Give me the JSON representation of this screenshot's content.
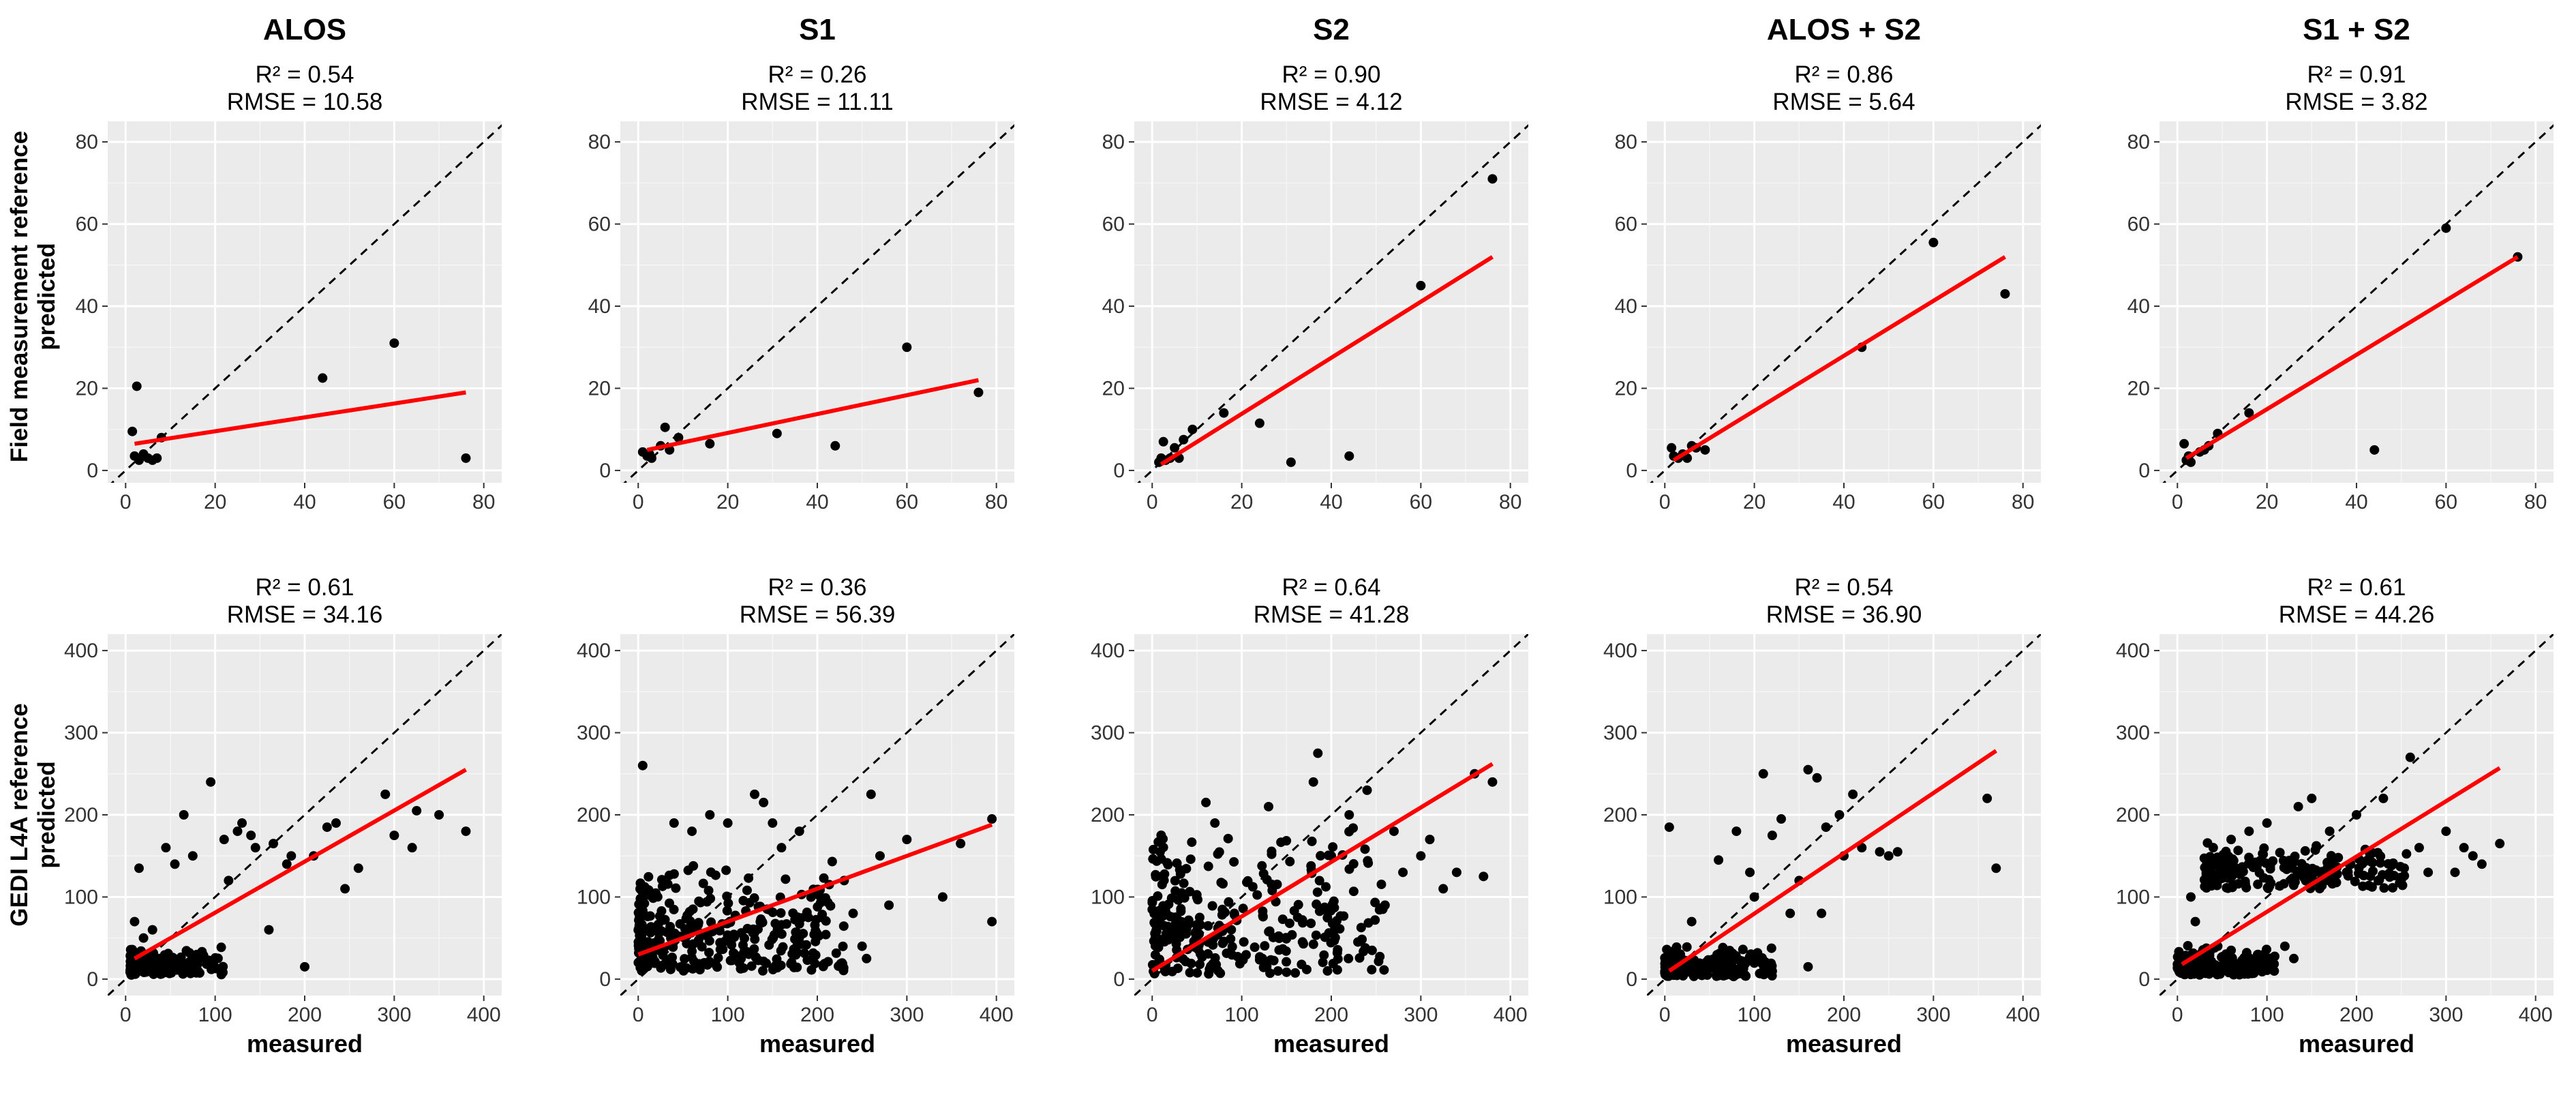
{
  "figure": {
    "columns": [
      "ALOS",
      "S1",
      "S2",
      "ALOS + S2",
      "S1 + S2"
    ],
    "rows": [
      {
        "ylabel_line1": "Field measurement reference",
        "ylabel_line2": "predicted"
      },
      {
        "ylabel_line1": "GEDI L4A reference",
        "ylabel_line2": "predicted"
      }
    ],
    "xlabel": "measured",
    "colors": {
      "panel_bg": "#ebebeb",
      "grid_major": "#ffffff",
      "grid_minor": "#f5f5f5",
      "points": "#000000",
      "fit_line": "#ff0000",
      "identity_line": "#000000"
    }
  },
  "chart_data": [
    {
      "type": "scatter",
      "column": "ALOS",
      "row": "Field measurement reference",
      "stat_r2": "R² = 0.54",
      "stat_rmse": "RMSE = 10.58",
      "xlim": [
        -4,
        84
      ],
      "ylim": [
        -3,
        85
      ],
      "xticks": [
        0,
        20,
        40,
        60,
        80
      ],
      "yticks": [
        0,
        20,
        40,
        60,
        80
      ],
      "points": [
        [
          1.5,
          9.5
        ],
        [
          2.5,
          20.5
        ],
        [
          2,
          3.5
        ],
        [
          3,
          2.5
        ],
        [
          4,
          4
        ],
        [
          5,
          3
        ],
        [
          6,
          2.5
        ],
        [
          7,
          3
        ],
        [
          8,
          8
        ],
        [
          44,
          22.5
        ],
        [
          60,
          31
        ],
        [
          76,
          3
        ]
      ],
      "fit": [
        [
          2,
          6.5
        ],
        [
          76,
          19
        ]
      ]
    },
    {
      "type": "scatter",
      "column": "S1",
      "row": "Field measurement reference",
      "stat_r2": "R² = 0.26",
      "stat_rmse": "RMSE = 11.11",
      "xlim": [
        -4,
        84
      ],
      "ylim": [
        -3,
        85
      ],
      "xticks": [
        0,
        20,
        40,
        60,
        80
      ],
      "yticks": [
        0,
        20,
        40,
        60,
        80
      ],
      "points": [
        [
          1,
          4.5
        ],
        [
          2,
          3.5
        ],
        [
          2.5,
          4
        ],
        [
          3,
          3
        ],
        [
          5,
          6
        ],
        [
          6,
          10.5
        ],
        [
          7,
          5
        ],
        [
          9,
          8
        ],
        [
          16,
          6.5
        ],
        [
          31,
          9
        ],
        [
          44,
          6
        ],
        [
          60,
          30
        ],
        [
          76,
          19
        ]
      ],
      "fit": [
        [
          2,
          5
        ],
        [
          76,
          22
        ]
      ]
    },
    {
      "type": "scatter",
      "column": "S2",
      "row": "Field measurement reference",
      "stat_r2": "R² = 0.90",
      "stat_rmse": "RMSE = 4.12",
      "xlim": [
        -4,
        84
      ],
      "ylim": [
        -3,
        85
      ],
      "xticks": [
        0,
        20,
        40,
        60,
        80
      ],
      "yticks": [
        0,
        20,
        40,
        60,
        80
      ],
      "points": [
        [
          1.5,
          2
        ],
        [
          2,
          3
        ],
        [
          2.5,
          7
        ],
        [
          3,
          2.5
        ],
        [
          4,
          3
        ],
        [
          5,
          5.5
        ],
        [
          6,
          3
        ],
        [
          7,
          7.5
        ],
        [
          9,
          10
        ],
        [
          16,
          14
        ],
        [
          24,
          11.5
        ],
        [
          31,
          2
        ],
        [
          44,
          3.5
        ],
        [
          60,
          45
        ],
        [
          76,
          71
        ]
      ],
      "fit": [
        [
          2,
          1.5
        ],
        [
          76,
          52
        ]
      ]
    },
    {
      "type": "scatter",
      "column": "ALOS + S2",
      "row": "Field measurement reference",
      "stat_r2": "R² = 0.86",
      "stat_rmse": "RMSE = 5.64",
      "xlim": [
        -4,
        84
      ],
      "ylim": [
        -3,
        85
      ],
      "xticks": [
        0,
        20,
        40,
        60,
        80
      ],
      "yticks": [
        0,
        20,
        40,
        60,
        80
      ],
      "points": [
        [
          1.5,
          5.5
        ],
        [
          2,
          3.5
        ],
        [
          3,
          3
        ],
        [
          4,
          4
        ],
        [
          5,
          3
        ],
        [
          6,
          6
        ],
        [
          7,
          5.5
        ],
        [
          9,
          5
        ],
        [
          44,
          30
        ],
        [
          60,
          55.5
        ],
        [
          76,
          43
        ]
      ],
      "fit": [
        [
          2,
          2.5
        ],
        [
          76,
          52
        ]
      ]
    },
    {
      "type": "scatter",
      "column": "S1 + S2",
      "row": "Field measurement reference",
      "stat_r2": "R² = 0.91",
      "stat_rmse": "RMSE = 3.82",
      "xlim": [
        -4,
        84
      ],
      "ylim": [
        -3,
        85
      ],
      "xticks": [
        0,
        20,
        40,
        60,
        80
      ],
      "yticks": [
        0,
        20,
        40,
        60,
        80
      ],
      "points": [
        [
          1.5,
          6.5
        ],
        [
          2,
          2.5
        ],
        [
          2.5,
          3.5
        ],
        [
          3,
          2
        ],
        [
          5,
          4.5
        ],
        [
          6,
          5
        ],
        [
          7,
          6
        ],
        [
          9,
          9
        ],
        [
          16,
          14
        ],
        [
          44,
          5
        ],
        [
          60,
          59
        ],
        [
          76,
          52
        ]
      ],
      "fit": [
        [
          2,
          3
        ],
        [
          76,
          52
        ]
      ]
    },
    {
      "type": "scatter",
      "column": "ALOS",
      "row": "GEDI L4A reference",
      "stat_r2": "R² = 0.61",
      "stat_rmse": "RMSE = 34.16",
      "xlim": [
        -20,
        420
      ],
      "ylim": [
        -20,
        420
      ],
      "xticks": [
        0,
        100,
        200,
        300,
        400
      ],
      "yticks": [
        0,
        100,
        200,
        300,
        400
      ],
      "points": [
        [
          10,
          70
        ],
        [
          15,
          135
        ],
        [
          20,
          50
        ],
        [
          30,
          60
        ],
        [
          45,
          160
        ],
        [
          55,
          140
        ],
        [
          65,
          200
        ],
        [
          75,
          150
        ],
        [
          95,
          240
        ],
        [
          110,
          170
        ],
        [
          115,
          120
        ],
        [
          125,
          180
        ],
        [
          130,
          190
        ],
        [
          140,
          175
        ],
        [
          145,
          160
        ],
        [
          160,
          60
        ],
        [
          165,
          165
        ],
        [
          180,
          140
        ],
        [
          185,
          150
        ],
        [
          200,
          15
        ],
        [
          210,
          150
        ],
        [
          225,
          185
        ],
        [
          235,
          190
        ],
        [
          245,
          110
        ],
        [
          260,
          135
        ],
        [
          290,
          225
        ],
        [
          300,
          175
        ],
        [
          320,
          160
        ],
        [
          325,
          205
        ],
        [
          350,
          200
        ],
        [
          380,
          180
        ]
      ],
      "cloud": {
        "x0": 5,
        "x1": 110,
        "y0": 5,
        "y1": 40,
        "n": 170,
        "seed": 11
      },
      "fit": [
        [
          10,
          25
        ],
        [
          380,
          255
        ]
      ]
    },
    {
      "type": "scatter",
      "column": "S1",
      "row": "GEDI L4A reference",
      "stat_r2": "R² = 0.36",
      "stat_rmse": "RMSE = 56.39",
      "xlim": [
        -20,
        420
      ],
      "ylim": [
        -20,
        420
      ],
      "xticks": [
        0,
        100,
        200,
        300,
        400
      ],
      "yticks": [
        0,
        100,
        200,
        300,
        400
      ],
      "points": [
        [
          5,
          260
        ],
        [
          40,
          190
        ],
        [
          60,
          180
        ],
        [
          80,
          200
        ],
        [
          100,
          190
        ],
        [
          130,
          225
        ],
        [
          140,
          215
        ],
        [
          150,
          190
        ],
        [
          160,
          160
        ],
        [
          180,
          180
        ],
        [
          230,
          120
        ],
        [
          240,
          80
        ],
        [
          250,
          40
        ],
        [
          255,
          25
        ],
        [
          260,
          225
        ],
        [
          270,
          150
        ],
        [
          280,
          90
        ],
        [
          300,
          170
        ],
        [
          340,
          100
        ],
        [
          360,
          165
        ],
        [
          395,
          195
        ],
        [
          395,
          70
        ]
      ],
      "cloud": {
        "x0": 0,
        "x1": 230,
        "y0": 10,
        "y1": 150,
        "n": 330,
        "seed": 23
      },
      "fit": [
        [
          0,
          30
        ],
        [
          395,
          188
        ]
      ]
    },
    {
      "type": "scatter",
      "column": "S2",
      "row": "GEDI L4A reference",
      "stat_r2": "R² = 0.64",
      "stat_rmse": "RMSE = 41.28",
      "xlim": [
        -20,
        420
      ],
      "ylim": [
        -20,
        420
      ],
      "xticks": [
        0,
        100,
        200,
        300,
        400
      ],
      "yticks": [
        0,
        100,
        200,
        300,
        400
      ],
      "points": [
        [
          60,
          215
        ],
        [
          70,
          190
        ],
        [
          130,
          210
        ],
        [
          180,
          240
        ],
        [
          185,
          275
        ],
        [
          200,
          150
        ],
        [
          220,
          200
        ],
        [
          240,
          230
        ],
        [
          260,
          90
        ],
        [
          270,
          180
        ],
        [
          280,
          130
        ],
        [
          300,
          150
        ],
        [
          310,
          170
        ],
        [
          325,
          110
        ],
        [
          340,
          130
        ],
        [
          360,
          250
        ],
        [
          370,
          125
        ],
        [
          380,
          240
        ]
      ],
      "cloud": {
        "x0": 0,
        "x1": 260,
        "y0": 5,
        "y1": 200,
        "n": 300,
        "seed": 37
      },
      "fit": [
        [
          0,
          10
        ],
        [
          380,
          262
        ]
      ]
    },
    {
      "type": "scatter",
      "column": "ALOS + S2",
      "row": "GEDI L4A reference",
      "stat_r2": "R² = 0.54",
      "stat_rmse": "RMSE = 36.90",
      "xlim": [
        -20,
        420
      ],
      "ylim": [
        -20,
        420
      ],
      "xticks": [
        0,
        100,
        200,
        300,
        400
      ],
      "yticks": [
        0,
        100,
        200,
        300,
        400
      ],
      "points": [
        [
          5,
          185
        ],
        [
          30,
          70
        ],
        [
          60,
          145
        ],
        [
          80,
          180
        ],
        [
          95,
          130
        ],
        [
          100,
          100
        ],
        [
          110,
          250
        ],
        [
          120,
          175
        ],
        [
          130,
          195
        ],
        [
          140,
          80
        ],
        [
          150,
          120
        ],
        [
          160,
          255
        ],
        [
          170,
          245
        ],
        [
          175,
          80
        ],
        [
          180,
          185
        ],
        [
          195,
          200
        ],
        [
          200,
          150
        ],
        [
          210,
          225
        ],
        [
          220,
          160
        ],
        [
          240,
          155
        ],
        [
          250,
          150
        ],
        [
          260,
          155
        ],
        [
          360,
          220
        ],
        [
          370,
          135
        ],
        [
          160,
          15
        ]
      ],
      "cloud": {
        "x0": 0,
        "x1": 120,
        "y0": 3,
        "y1": 45,
        "n": 190,
        "seed": 53
      },
      "fit": [
        [
          5,
          10
        ],
        [
          370,
          278
        ]
      ]
    },
    {
      "type": "scatter",
      "column": "S1 + S2",
      "row": "GEDI L4A reference",
      "stat_r2": "R² = 0.61",
      "stat_rmse": "RMSE = 44.26",
      "xlim": [
        -20,
        420
      ],
      "ylim": [
        -20,
        420
      ],
      "xticks": [
        0,
        100,
        200,
        300,
        400
      ],
      "yticks": [
        0,
        100,
        200,
        300,
        400
      ],
      "points": [
        [
          15,
          100
        ],
        [
          40,
          160
        ],
        [
          60,
          170
        ],
        [
          80,
          180
        ],
        [
          100,
          190
        ],
        [
          135,
          210
        ],
        [
          150,
          220
        ],
        [
          170,
          180
        ],
        [
          200,
          200
        ],
        [
          230,
          220
        ],
        [
          260,
          270
        ],
        [
          270,
          160
        ],
        [
          280,
          130
        ],
        [
          300,
          180
        ],
        [
          310,
          130
        ],
        [
          320,
          160
        ],
        [
          330,
          150
        ],
        [
          340,
          140
        ],
        [
          360,
          165
        ],
        [
          20,
          70
        ],
        [
          45,
          40
        ],
        [
          60,
          35
        ],
        [
          90,
          30
        ],
        [
          120,
          40
        ],
        [
          130,
          25
        ]
      ],
      "cloud": {
        "x0": 30,
        "x1": 260,
        "y0": 110,
        "y1": 170,
        "n": 200,
        "seed": 71
      },
      "cloud2": {
        "x0": 0,
        "x1": 110,
        "y0": 5,
        "y1": 45,
        "n": 160,
        "seed": 79
      },
      "fit": [
        [
          5,
          18
        ],
        [
          360,
          257
        ]
      ]
    }
  ]
}
